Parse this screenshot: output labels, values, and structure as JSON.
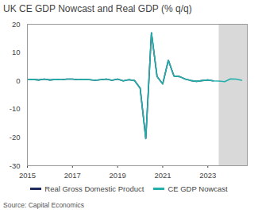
{
  "chart_data": {
    "type": "line",
    "title": "UK CE GDP Nowcast and Real GDP (% q/q)",
    "source": "Source: Capital Economics",
    "x": [
      2015,
      2015.25,
      2015.5,
      2015.75,
      2016,
      2016.25,
      2016.5,
      2016.75,
      2017,
      2017.25,
      2017.5,
      2017.75,
      2018,
      2018.25,
      2018.5,
      2018.75,
      2019,
      2019.25,
      2019.5,
      2019.75,
      2020,
      2020.25,
      2020.5,
      2020.75,
      2021,
      2021.25,
      2021.5,
      2021.75,
      2022,
      2022.25,
      2022.5,
      2022.75,
      2023,
      2023.25,
      2023.5,
      2023.75,
      2024,
      2024.25,
      2024.5
    ],
    "series": [
      {
        "name": "Real Gross Domestic Product",
        "color": "#1f2a5c",
        "values": [
          0.4,
          0.5,
          0.3,
          0.6,
          0.3,
          0.5,
          0.4,
          0.6,
          0.6,
          0.4,
          0.5,
          0.4,
          0.2,
          0.4,
          0.6,
          0.2,
          0.6,
          0.0,
          0.4,
          0.1,
          -2.6,
          -20.4,
          17.0,
          1.5,
          -1.1,
          7.3,
          1.7,
          1.5,
          0.6,
          0.1,
          -0.2,
          0.1,
          0.3,
          0.0,
          null,
          null,
          null,
          null,
          null
        ]
      },
      {
        "name": "CE GDP Nowcast",
        "color": "#23b0ab",
        "values": [
          0.4,
          0.5,
          0.3,
          0.6,
          0.3,
          0.5,
          0.4,
          0.6,
          0.6,
          0.4,
          0.5,
          0.4,
          0.2,
          0.4,
          0.6,
          0.2,
          0.6,
          0.0,
          0.4,
          0.1,
          -2.6,
          -20.4,
          17.0,
          1.5,
          -1.1,
          7.3,
          1.7,
          1.5,
          0.6,
          0.1,
          -0.2,
          0.1,
          0.3,
          0.0,
          -0.1,
          -0.3,
          0.7,
          0.6,
          0.2
        ]
      }
    ],
    "shaded_x": [
      2023.5,
      2024.75
    ],
    "xlim": [
      2015,
      2024.75
    ],
    "xticks": [
      2015,
      2017,
      2019,
      2021,
      2023
    ],
    "ylim": [
      -30,
      20
    ],
    "yticks": [
      -30,
      -20,
      -10,
      0,
      10,
      20
    ],
    "grid": false,
    "legend": "bottom"
  }
}
